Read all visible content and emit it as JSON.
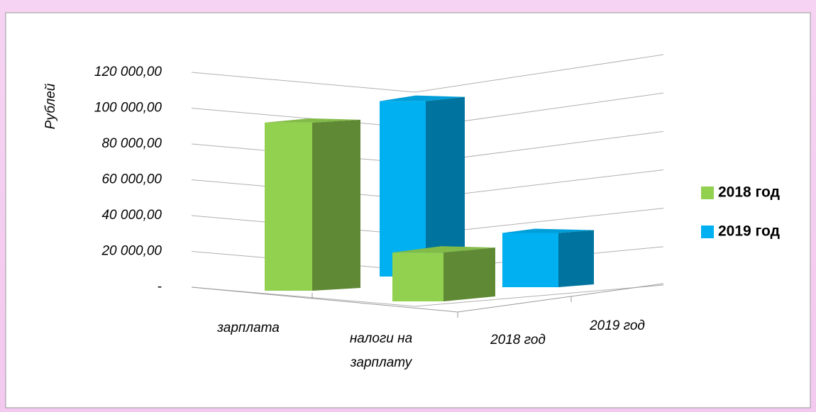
{
  "chart_data": {
    "type": "bar3d",
    "y_label": "Рублей",
    "categories": [
      "зарплата",
      "налоги на зарплату"
    ],
    "series": [
      {
        "name": "2018 год",
        "color": "#92d050",
        "values": [
          93000,
          27000
        ]
      },
      {
        "name": "2019 год",
        "color": "#00b0f0",
        "values": [
          97000,
          30000
        ]
      }
    ],
    "ylim": [
      0,
      120000
    ],
    "yticks": [
      {
        "value": 0,
        "label": "-"
      },
      {
        "value": 20000,
        "label": "20 000,00"
      },
      {
        "value": 40000,
        "label": "40 000,00"
      },
      {
        "value": 60000,
        "label": "60 000,00"
      },
      {
        "value": 80000,
        "label": "80 000,00"
      },
      {
        "value": 100000,
        "label": "100 000,00"
      },
      {
        "value": 120000,
        "label": "120 000,00"
      }
    ],
    "grid": true,
    "legend": "right"
  }
}
